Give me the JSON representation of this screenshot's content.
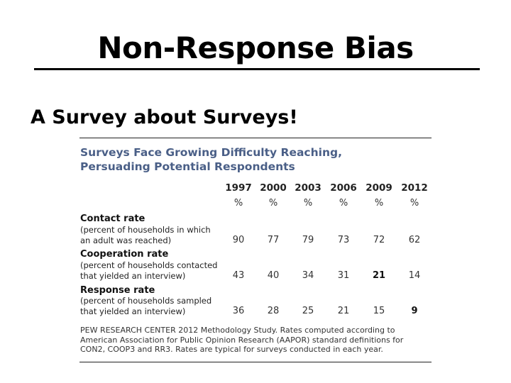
{
  "slide": {
    "title": "Non-Response Bias",
    "subtitle": "A Survey about Surveys!"
  },
  "table": {
    "title_line1": "Surveys Face Growing Difficulty Reaching,",
    "title_line2": "Persuading Potential Respondents",
    "years": [
      "1997",
      "2000",
      "2003",
      "2006",
      "2009",
      "2012"
    ],
    "unit": "%",
    "rows": [
      {
        "label": "Contact rate",
        "desc_line1": "(percent of households in which",
        "desc_line2": "an adult was reached)",
        "values": [
          "90",
          "77",
          "79",
          "73",
          "72",
          "62"
        ]
      },
      {
        "label": "Cooperation rate",
        "desc_line1": "(percent of households contacted",
        "desc_line2": "that yielded an interview)",
        "values": [
          "43",
          "40",
          "34",
          "31",
          "21",
          "14"
        ]
      },
      {
        "label": "Response rate",
        "desc_line1": "(percent of households sampled",
        "desc_line2": "that yielded an interview)",
        "values": [
          "36",
          "28",
          "25",
          "21",
          "15",
          "9"
        ]
      }
    ],
    "note_line1": "PEW RESEARCH  CENTER 2012 Methodology Study. Rates  computed according to",
    "note_line2": "American Association for Public Opinion Research (AAPOR)  standard definitions for",
    "note_line3": "CON2, COOP3  and RR3.  Rates are typical for surveys conducted in each year."
  }
}
